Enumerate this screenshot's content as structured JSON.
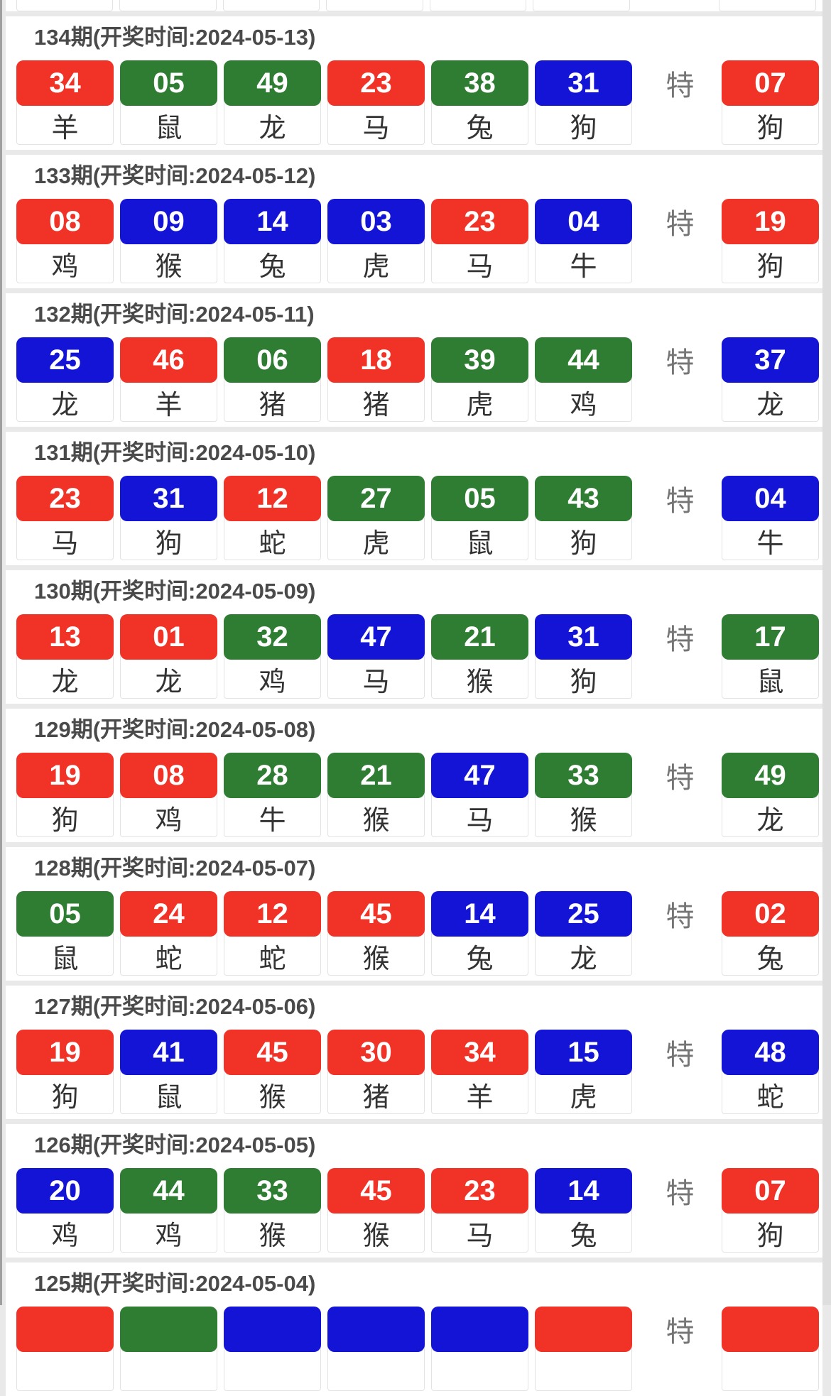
{
  "special_label": "特",
  "colors": {
    "red": "#f13226",
    "blue": "#1414d6",
    "green": "#2e7d32"
  },
  "rows": [
    {
      "title": "134期(开奖时间:2024-05-13)",
      "balls": [
        {
          "num": "34",
          "c": "red",
          "zodiac": "羊"
        },
        {
          "num": "05",
          "c": "green",
          "zodiac": "鼠"
        },
        {
          "num": "49",
          "c": "green",
          "zodiac": "龙"
        },
        {
          "num": "23",
          "c": "red",
          "zodiac": "马"
        },
        {
          "num": "38",
          "c": "green",
          "zodiac": "兔"
        },
        {
          "num": "31",
          "c": "blue",
          "zodiac": "狗"
        }
      ],
      "special": {
        "num": "07",
        "c": "red",
        "zodiac": "狗"
      }
    },
    {
      "title": "133期(开奖时间:2024-05-12)",
      "balls": [
        {
          "num": "08",
          "c": "red",
          "zodiac": "鸡"
        },
        {
          "num": "09",
          "c": "blue",
          "zodiac": "猴"
        },
        {
          "num": "14",
          "c": "blue",
          "zodiac": "兔"
        },
        {
          "num": "03",
          "c": "blue",
          "zodiac": "虎"
        },
        {
          "num": "23",
          "c": "red",
          "zodiac": "马"
        },
        {
          "num": "04",
          "c": "blue",
          "zodiac": "牛"
        }
      ],
      "special": {
        "num": "19",
        "c": "red",
        "zodiac": "狗"
      }
    },
    {
      "title": "132期(开奖时间:2024-05-11)",
      "balls": [
        {
          "num": "25",
          "c": "blue",
          "zodiac": "龙"
        },
        {
          "num": "46",
          "c": "red",
          "zodiac": "羊"
        },
        {
          "num": "06",
          "c": "green",
          "zodiac": "猪"
        },
        {
          "num": "18",
          "c": "red",
          "zodiac": "猪"
        },
        {
          "num": "39",
          "c": "green",
          "zodiac": "虎"
        },
        {
          "num": "44",
          "c": "green",
          "zodiac": "鸡"
        }
      ],
      "special": {
        "num": "37",
        "c": "blue",
        "zodiac": "龙"
      }
    },
    {
      "title": "131期(开奖时间:2024-05-10)",
      "balls": [
        {
          "num": "23",
          "c": "red",
          "zodiac": "马"
        },
        {
          "num": "31",
          "c": "blue",
          "zodiac": "狗"
        },
        {
          "num": "12",
          "c": "red",
          "zodiac": "蛇"
        },
        {
          "num": "27",
          "c": "green",
          "zodiac": "虎"
        },
        {
          "num": "05",
          "c": "green",
          "zodiac": "鼠"
        },
        {
          "num": "43",
          "c": "green",
          "zodiac": "狗"
        }
      ],
      "special": {
        "num": "04",
        "c": "blue",
        "zodiac": "牛"
      }
    },
    {
      "title": "130期(开奖时间:2024-05-09)",
      "balls": [
        {
          "num": "13",
          "c": "red",
          "zodiac": "龙"
        },
        {
          "num": "01",
          "c": "red",
          "zodiac": "龙"
        },
        {
          "num": "32",
          "c": "green",
          "zodiac": "鸡"
        },
        {
          "num": "47",
          "c": "blue",
          "zodiac": "马"
        },
        {
          "num": "21",
          "c": "green",
          "zodiac": "猴"
        },
        {
          "num": "31",
          "c": "blue",
          "zodiac": "狗"
        }
      ],
      "special": {
        "num": "17",
        "c": "green",
        "zodiac": "鼠"
      }
    },
    {
      "title": "129期(开奖时间:2024-05-08)",
      "balls": [
        {
          "num": "19",
          "c": "red",
          "zodiac": "狗"
        },
        {
          "num": "08",
          "c": "red",
          "zodiac": "鸡"
        },
        {
          "num": "28",
          "c": "green",
          "zodiac": "牛"
        },
        {
          "num": "21",
          "c": "green",
          "zodiac": "猴"
        },
        {
          "num": "47",
          "c": "blue",
          "zodiac": "马"
        },
        {
          "num": "33",
          "c": "green",
          "zodiac": "猴"
        }
      ],
      "special": {
        "num": "49",
        "c": "green",
        "zodiac": "龙"
      }
    },
    {
      "title": "128期(开奖时间:2024-05-07)",
      "balls": [
        {
          "num": "05",
          "c": "green",
          "zodiac": "鼠"
        },
        {
          "num": "24",
          "c": "red",
          "zodiac": "蛇"
        },
        {
          "num": "12",
          "c": "red",
          "zodiac": "蛇"
        },
        {
          "num": "45",
          "c": "red",
          "zodiac": "猴"
        },
        {
          "num": "14",
          "c": "blue",
          "zodiac": "兔"
        },
        {
          "num": "25",
          "c": "blue",
          "zodiac": "龙"
        }
      ],
      "special": {
        "num": "02",
        "c": "red",
        "zodiac": "兔"
      }
    },
    {
      "title": "127期(开奖时间:2024-05-06)",
      "balls": [
        {
          "num": "19",
          "c": "red",
          "zodiac": "狗"
        },
        {
          "num": "41",
          "c": "blue",
          "zodiac": "鼠"
        },
        {
          "num": "45",
          "c": "red",
          "zodiac": "猴"
        },
        {
          "num": "30",
          "c": "red",
          "zodiac": "猪"
        },
        {
          "num": "34",
          "c": "red",
          "zodiac": "羊"
        },
        {
          "num": "15",
          "c": "blue",
          "zodiac": "虎"
        }
      ],
      "special": {
        "num": "48",
        "c": "blue",
        "zodiac": "蛇"
      }
    },
    {
      "title": "126期(开奖时间:2024-05-05)",
      "balls": [
        {
          "num": "20",
          "c": "blue",
          "zodiac": "鸡"
        },
        {
          "num": "44",
          "c": "green",
          "zodiac": "鸡"
        },
        {
          "num": "33",
          "c": "green",
          "zodiac": "猴"
        },
        {
          "num": "45",
          "c": "red",
          "zodiac": "猴"
        },
        {
          "num": "23",
          "c": "red",
          "zodiac": "马"
        },
        {
          "num": "14",
          "c": "blue",
          "zodiac": "兔"
        }
      ],
      "special": {
        "num": "07",
        "c": "red",
        "zodiac": "狗"
      }
    },
    {
      "title": "125期(开奖时间:2024-05-04)",
      "balls": [
        {
          "num": "",
          "c": "red",
          "zodiac": ""
        },
        {
          "num": "",
          "c": "green",
          "zodiac": ""
        },
        {
          "num": "",
          "c": "blue",
          "zodiac": ""
        },
        {
          "num": "",
          "c": "blue",
          "zodiac": ""
        },
        {
          "num": "",
          "c": "blue",
          "zodiac": ""
        },
        {
          "num": "",
          "c": "red",
          "zodiac": ""
        }
      ],
      "special": {
        "num": "",
        "c": "red",
        "zodiac": ""
      }
    }
  ]
}
